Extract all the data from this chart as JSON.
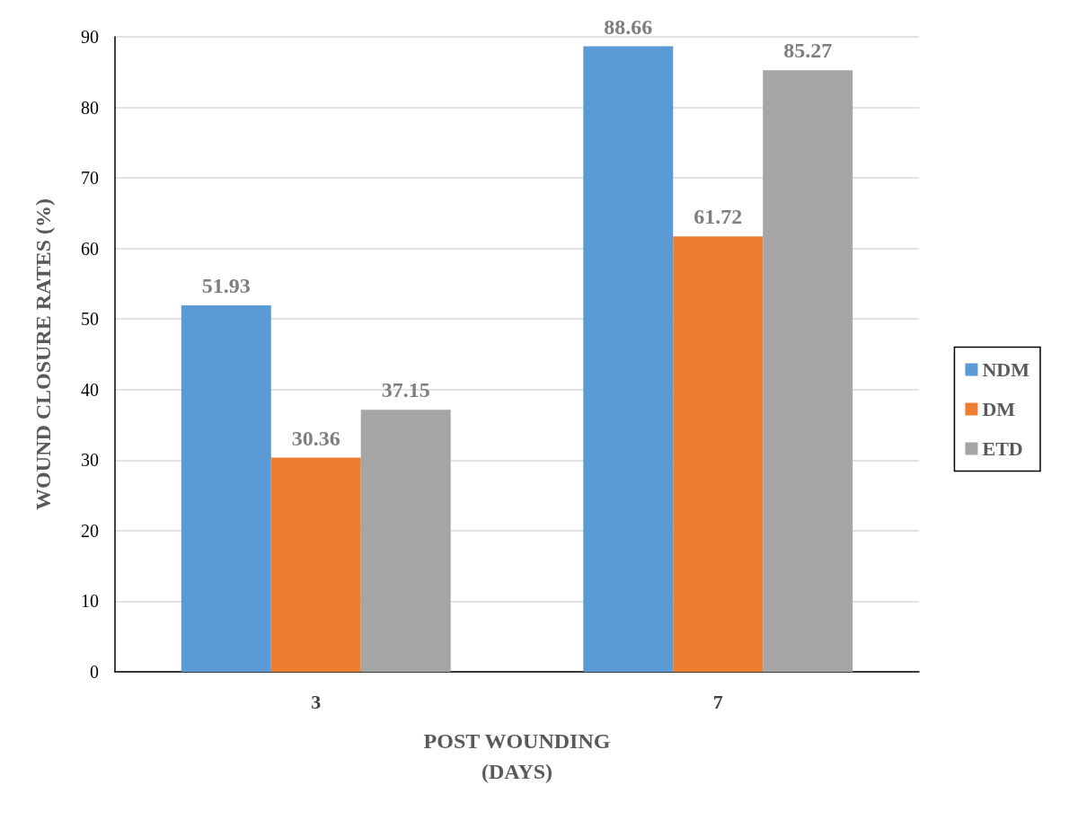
{
  "chart_data": {
    "type": "bar",
    "xlabel": "POST WOUNDING\n(DAYS)",
    "ylabel": "WOUND CLOSURE RATES (%)",
    "categories": [
      "3",
      "7"
    ],
    "series": [
      {
        "name": "NDM",
        "color": "#5b9bd5",
        "values": [
          51.93,
          88.66
        ]
      },
      {
        "name": "DM",
        "color": "#ed7d31",
        "values": [
          30.36,
          61.72
        ]
      },
      {
        "name": "ETD",
        "color": "#a5a5a5",
        "values": [
          37.15,
          85.27
        ]
      }
    ],
    "ylim": [
      0,
      90
    ],
    "yticks": [
      0,
      10,
      20,
      30,
      40,
      50,
      60,
      70,
      80,
      90
    ],
    "grid": "y",
    "legend": "right",
    "data_labels": true
  }
}
